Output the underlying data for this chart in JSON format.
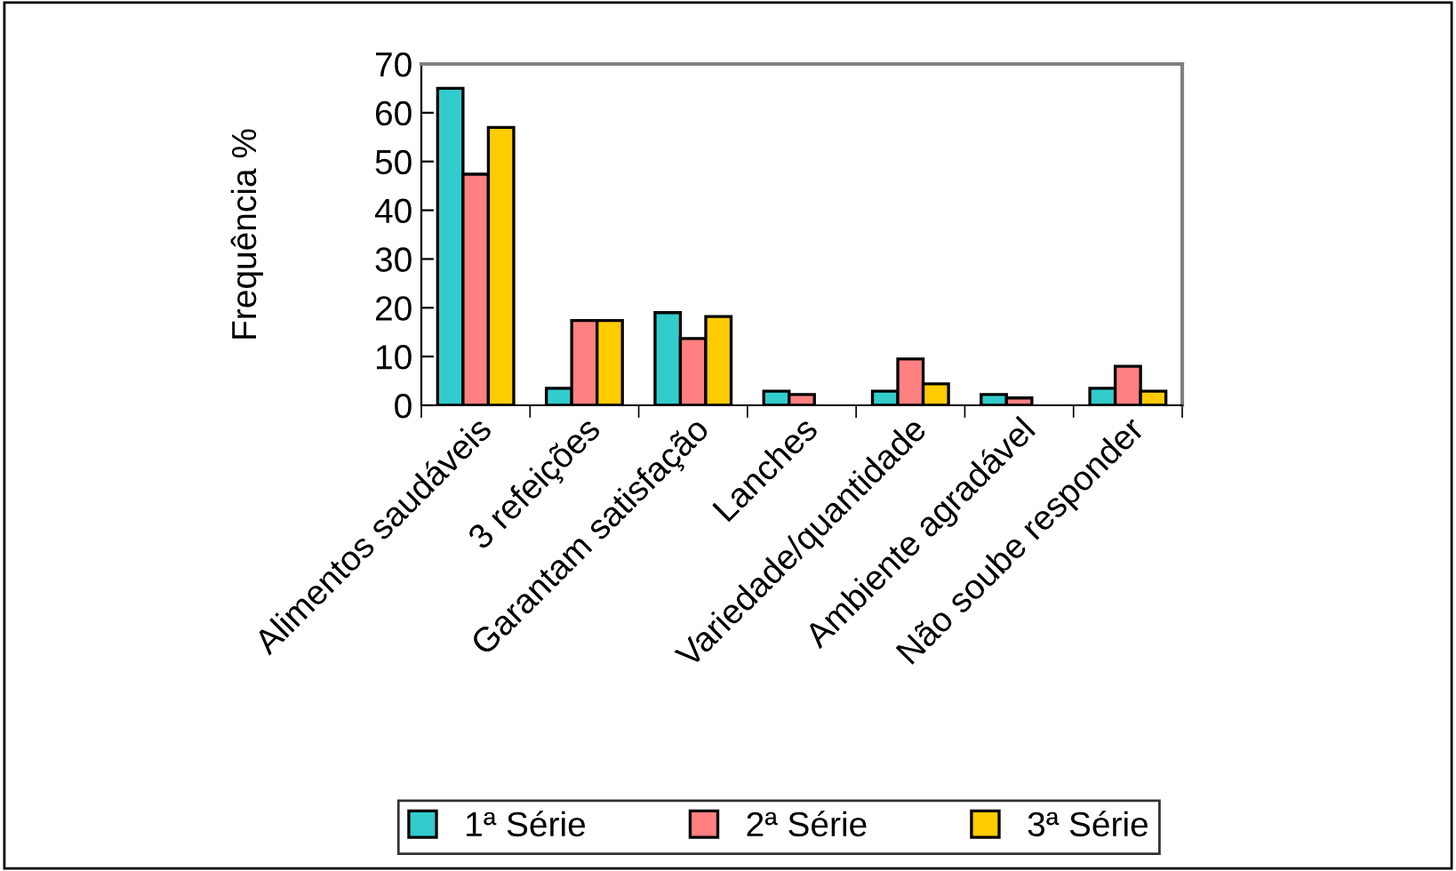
{
  "chart_data": {
    "type": "bar",
    "ylabel": "Frequência %",
    "categories": [
      "Alimentos saudáveis",
      "3 refeições",
      "Garantam satisfação",
      "Lanches",
      "Variedade/quantidade",
      "Ambiente agradável",
      "Não soube responder"
    ],
    "series": [
      {
        "name": "1ª Série",
        "color": "#33cccc",
        "values": [
          65,
          3.5,
          19,
          2.9,
          2.9,
          2.2,
          3.5
        ]
      },
      {
        "name": "2ª Série",
        "color": "#ff8080",
        "values": [
          47.4,
          17.4,
          13.7,
          2.2,
          9.5,
          1.5,
          8.0
        ]
      },
      {
        "name": "3ª Série",
        "color": "#ffcc00",
        "values": [
          57,
          17.4,
          18.2,
          0,
          4.4,
          0,
          2.9
        ]
      }
    ],
    "ylim": [
      0,
      70
    ],
    "yticks": [
      0,
      10,
      20,
      30,
      40,
      50,
      60,
      70
    ],
    "grid": false,
    "legend": "bottom"
  }
}
